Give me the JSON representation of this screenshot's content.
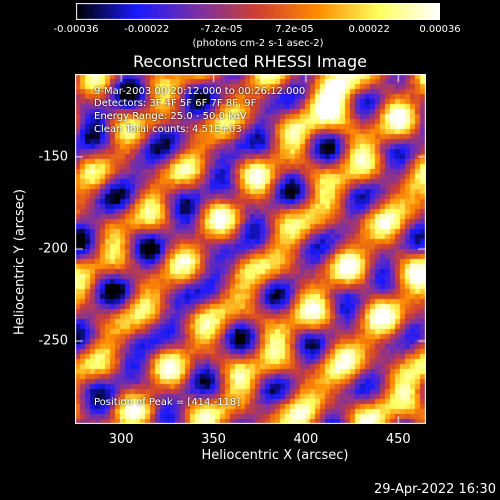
{
  "chart_data": {
    "type": "heatmap",
    "title": "Reconstructed RHESSI Image",
    "xlabel": "Heliocentric X (arcsec)",
    "ylabel": "Heliocentric Y (arcsec)",
    "xlim": [
      275,
      465
    ],
    "ylim": [
      -295,
      -105
    ],
    "x_ticks": [
      "300",
      "350",
      "400",
      "450"
    ],
    "y_ticks": [
      "-150",
      "-200",
      "-250"
    ],
    "colorbar": {
      "ticks": [
        "-0.00036",
        "-0.00022",
        "-7.2e-05",
        "7.2e-05",
        "0.00022",
        "0.00036"
      ],
      "range": [
        -0.00036,
        0.00036
      ],
      "unit_label": "(photons cm-2 s-1 asec-2)",
      "colormap": [
        "#000000",
        "#1a1aff",
        "#7a2fa8",
        "#d04030",
        "#ff8c00",
        "#ffff60",
        "#ffffff"
      ]
    },
    "annotations": [
      "9-Mar-2003 00:20:12.000 to 00:26:12.000",
      "Detectors: 3F 4F 5F 6F 7F 8F, 9F",
      "Energy Range: 25.0 - 50.0 keV",
      "Clean     Total counts: 4.51E+03"
    ],
    "peak_label": "Position of Peak = [414,-118]",
    "peak": [
      414,
      -118
    ],
    "grid": false
  },
  "footer": "29-Apr-2022 16:30"
}
